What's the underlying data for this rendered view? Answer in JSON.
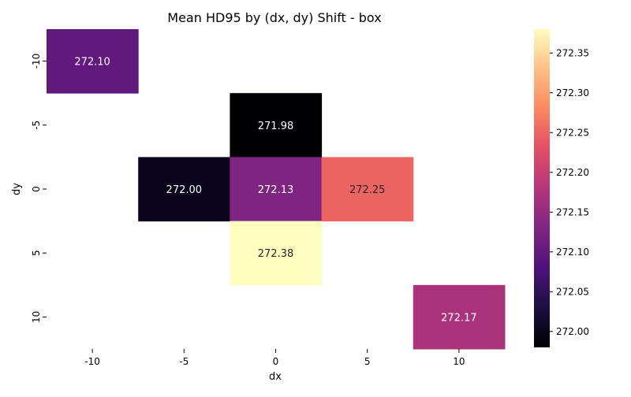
{
  "chart_data": {
    "type": "heatmap",
    "title": "Mean HD95 by (dx, dy) Shift - box",
    "xlabel": "dx",
    "ylabel": "dy",
    "x_categories": [
      "-10",
      "-5",
      "0",
      "5",
      "10"
    ],
    "y_categories": [
      "-10",
      "-5",
      "0",
      "5",
      "10"
    ],
    "cells": [
      {
        "dx": "-10",
        "dy": "-10",
        "value": 272.1,
        "label": "272.10"
      },
      {
        "dx": "0",
        "dy": "-5",
        "value": 271.98,
        "label": "271.98"
      },
      {
        "dx": "-5",
        "dy": "0",
        "value": 272.0,
        "label": "272.00"
      },
      {
        "dx": "0",
        "dy": "0",
        "value": 272.13,
        "label": "272.13"
      },
      {
        "dx": "5",
        "dy": "0",
        "value": 272.25,
        "label": "272.25"
      },
      {
        "dx": "0",
        "dy": "5",
        "value": 272.38,
        "label": "272.38"
      },
      {
        "dx": "10",
        "dy": "10",
        "value": 272.17,
        "label": "272.17"
      }
    ],
    "colormap": "magma",
    "colorbar": {
      "vmin": 271.98,
      "vmax": 272.38,
      "ticks": [
        "272.00",
        "272.05",
        "272.10",
        "272.15",
        "272.20",
        "272.25",
        "272.30",
        "272.35"
      ],
      "tick_values": [
        272.0,
        272.05,
        272.1,
        272.15,
        272.2,
        272.25,
        272.3,
        272.35
      ]
    },
    "grid": false
  }
}
